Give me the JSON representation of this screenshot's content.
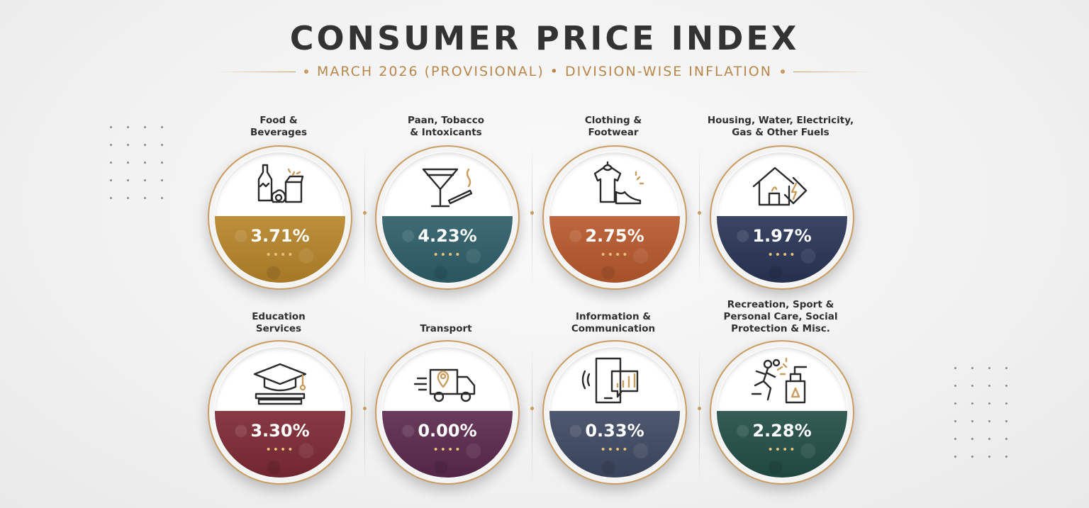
{
  "header": {
    "title": "CONSUMER PRICE INDEX",
    "subtitle": "MARCH 2026 (PROVISIONAL) • DIVISION-WISE INFLATION"
  },
  "chart_data": {
    "type": "table",
    "title": "CONSUMER PRICE INDEX",
    "subtitle": "MARCH 2026 (PROVISIONAL) • DIVISION-WISE INFLATION",
    "unit": "%",
    "categories": [
      {
        "label": "Food & Beverages",
        "lines": [
          "Food &",
          "Beverages"
        ],
        "value": 3.71,
        "display": "3.71%",
        "dots": "••••",
        "color": "#b8862b",
        "icon": "food-bottle-icon"
      },
      {
        "label": "Paan, Tobacco & Intoxicants",
        "lines": [
          "Paan, Tobacco",
          "& Intoxicants"
        ],
        "value": 4.23,
        "display": "4.23%",
        "dots": "••••",
        "color": "#2e5f69",
        "icon": "cocktail-cigarette-icon"
      },
      {
        "label": "Clothing & Footwear",
        "lines": [
          "Clothing &",
          "Footwear"
        ],
        "value": 2.75,
        "display": "2.75%",
        "dots": "••••",
        "color": "#b95a2e",
        "icon": "shirt-shoe-icon"
      },
      {
        "label": "Housing, Water, Electricity, Gas & Other Fuels",
        "lines": [
          "Housing, Water, Electricity,",
          "Gas & Other Fuels"
        ],
        "value": 1.97,
        "display": "1.97%",
        "dots": "••••",
        "color": "#2a3557",
        "icon": "house-energy-icon"
      },
      {
        "label": "Education Services",
        "lines": [
          "Education",
          "Services"
        ],
        "value": 3.3,
        "display": "3.30%",
        "dots": "••••",
        "color": "#7e2a35",
        "icon": "graduation-cap-icon"
      },
      {
        "label": "Transport",
        "lines": [
          "Transport"
        ],
        "value": 0.0,
        "display": "0.00%",
        "dots": "••••",
        "color": "#5c2a4e",
        "icon": "delivery-truck-icon"
      },
      {
        "label": "Information & Communication",
        "lines": [
          "Information &",
          "Communication"
        ],
        "value": 0.33,
        "display": "0.33%",
        "dots": "••••",
        "color": "#3f4a63",
        "icon": "smartphone-chart-icon"
      },
      {
        "label": "Recreation, Sport & Personal Care, Social Protection & Misc.",
        "lines": [
          "Recreation, Sport &",
          "Personal Care, Social",
          "Protection & Misc."
        ],
        "value": 2.28,
        "display": "2.28%",
        "dots": "••••",
        "color": "#234f47",
        "icon": "runner-dispenser-icon"
      }
    ]
  },
  "colors": {
    "accent_gold": "#c99c5f",
    "title_text": "#333333",
    "subtitle_text": "#b8874b"
  }
}
